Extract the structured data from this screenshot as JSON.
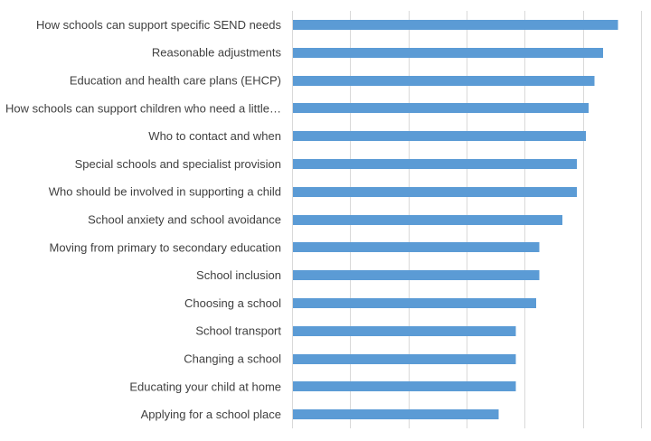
{
  "chart_data": {
    "type": "bar",
    "orientation": "horizontal",
    "categories": [
      "How schools can support specific SEND needs",
      "Reasonable adjustments",
      "Education and health care plans (EHCP)",
      "How schools can support children who need a little…",
      "Who to contact and when",
      "Special schools and specialist provision",
      "Who should be involved in supporting a child",
      "School anxiety and school avoidance",
      "Moving from primary to secondary education",
      "School inclusion",
      "Choosing a school",
      "School transport",
      "Changing a school",
      "Educating your child at home",
      "Applying for a school place"
    ],
    "values": [
      56,
      53.5,
      52,
      51,
      50.5,
      49,
      49,
      46.5,
      42.5,
      42.5,
      42,
      38.5,
      38.5,
      38.5,
      35.5
    ],
    "xlim": [
      0,
      60
    ],
    "grid_step": 10,
    "grid": true,
    "bar_color": "#5b9bd5",
    "grid_color": "#d9d9d9",
    "label_color": "#404040"
  }
}
